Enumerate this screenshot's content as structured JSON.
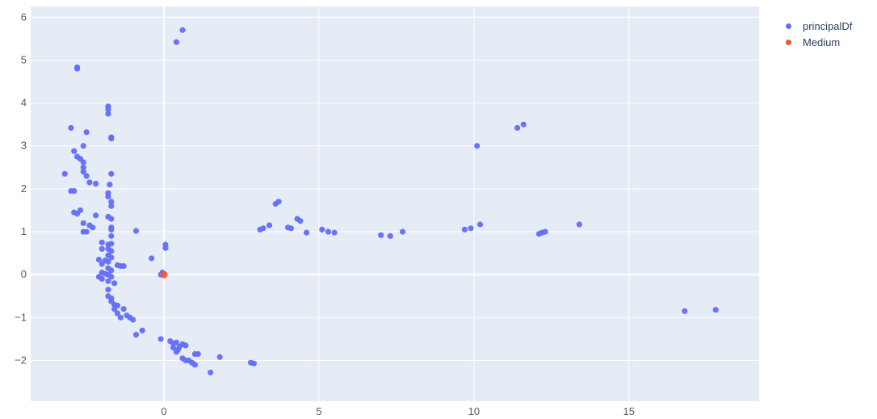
{
  "chart_data": {
    "type": "scatter",
    "title": "",
    "xlabel": "",
    "ylabel": "",
    "xlim": [
      -4.3,
      19.2
    ],
    "ylim": [
      -2.95,
      6.25
    ],
    "x_ticks": [
      0,
      5,
      10,
      15
    ],
    "x_tick_labels": [
      "0",
      "5",
      "10",
      "15"
    ],
    "y_ticks": [
      -2,
      -1,
      0,
      1,
      2,
      3,
      4,
      5,
      6
    ],
    "y_tick_labels": [
      "−2",
      "−1",
      "0",
      "1",
      "2",
      "3",
      "4",
      "5",
      "6"
    ],
    "grid": true,
    "plot_background": "#e5ecf6",
    "legend_position": "top-right, outside plot",
    "series": [
      {
        "name": "principalDf",
        "color": "#636efa",
        "points": [
          [
            0.4,
            5.42
          ],
          [
            0.6,
            5.7
          ],
          [
            -2.8,
            4.83
          ],
          [
            -2.8,
            4.8
          ],
          [
            -1.8,
            3.92
          ],
          [
            -1.8,
            3.85
          ],
          [
            -1.8,
            3.75
          ],
          [
            -3.0,
            3.42
          ],
          [
            -2.5,
            3.32
          ],
          [
            -1.7,
            3.2
          ],
          [
            -1.7,
            3.17
          ],
          [
            -2.6,
            3.0
          ],
          [
            -2.9,
            2.88
          ],
          [
            -2.8,
            2.75
          ],
          [
            -2.7,
            2.7
          ],
          [
            -2.6,
            2.62
          ],
          [
            -2.6,
            2.5
          ],
          [
            -2.6,
            2.4
          ],
          [
            -3.2,
            2.35
          ],
          [
            -2.5,
            2.3
          ],
          [
            -1.7,
            2.35
          ],
          [
            -2.4,
            2.15
          ],
          [
            -2.2,
            2.12
          ],
          [
            -1.75,
            2.1
          ],
          [
            -3.0,
            1.95
          ],
          [
            -2.9,
            1.95
          ],
          [
            -1.8,
            1.9
          ],
          [
            -1.8,
            1.82
          ],
          [
            -1.7,
            1.7
          ],
          [
            -1.7,
            1.6
          ],
          [
            -2.7,
            1.5
          ],
          [
            -2.9,
            1.45
          ],
          [
            -2.8,
            1.42
          ],
          [
            -2.2,
            1.38
          ],
          [
            -1.8,
            1.35
          ],
          [
            -1.7,
            1.3
          ],
          [
            -2.6,
            1.2
          ],
          [
            -2.4,
            1.15
          ],
          [
            -2.3,
            1.1
          ],
          [
            -1.7,
            1.1
          ],
          [
            -1.7,
            1.05
          ],
          [
            -2.6,
            1.0
          ],
          [
            -2.5,
            1.0
          ],
          [
            -0.9,
            1.02
          ],
          [
            -1.7,
            0.9
          ],
          [
            -2.0,
            0.75
          ],
          [
            -1.8,
            0.7
          ],
          [
            -1.7,
            0.72
          ],
          [
            -2.0,
            0.6
          ],
          [
            -1.8,
            0.6
          ],
          [
            -1.7,
            0.55
          ],
          [
            -1.8,
            0.45
          ],
          [
            -1.7,
            0.4
          ],
          [
            -2.1,
            0.35
          ],
          [
            -1.9,
            0.33
          ],
          [
            -1.8,
            0.3
          ],
          [
            -2.0,
            0.25
          ],
          [
            -1.5,
            0.22
          ],
          [
            -1.4,
            0.2
          ],
          [
            -1.3,
            0.2
          ],
          [
            -1.8,
            0.15
          ],
          [
            -1.7,
            0.1
          ],
          [
            -2.0,
            0.05
          ],
          [
            -1.9,
            0.02
          ],
          [
            -1.8,
            0.0
          ],
          [
            -1.7,
            -0.05
          ],
          [
            -2.1,
            -0.05
          ],
          [
            -2.0,
            -0.1
          ],
          [
            -1.8,
            -0.15
          ],
          [
            -1.6,
            -0.2
          ],
          [
            -1.8,
            -0.35
          ],
          [
            -1.8,
            -0.5
          ],
          [
            -1.7,
            -0.55
          ],
          [
            -1.7,
            -0.62
          ],
          [
            -1.6,
            -0.7
          ],
          [
            -1.5,
            -0.72
          ],
          [
            -1.6,
            -0.8
          ],
          [
            -1.3,
            -0.8
          ],
          [
            -1.5,
            -0.9
          ],
          [
            -1.2,
            -0.95
          ],
          [
            -1.4,
            -1.0
          ],
          [
            -1.1,
            -1.0
          ],
          [
            -1.0,
            -1.05
          ],
          [
            -0.7,
            -1.3
          ],
          [
            -0.9,
            -1.4
          ],
          [
            -0.4,
            0.38
          ],
          [
            0.05,
            0.7
          ],
          [
            0.05,
            0.62
          ],
          [
            -0.05,
            0.05
          ],
          [
            -0.1,
            0.0
          ],
          [
            -0.1,
            -1.5
          ],
          [
            0.2,
            -1.55
          ],
          [
            0.3,
            -1.6
          ],
          [
            0.4,
            -1.58
          ],
          [
            0.3,
            -1.7
          ],
          [
            0.45,
            -1.75
          ],
          [
            0.5,
            -1.68
          ],
          [
            0.6,
            -1.62
          ],
          [
            0.4,
            -1.8
          ],
          [
            0.7,
            -1.65
          ],
          [
            0.6,
            -1.95
          ],
          [
            0.7,
            -2.0
          ],
          [
            0.8,
            -2.0
          ],
          [
            0.9,
            -2.05
          ],
          [
            1.0,
            -1.85
          ],
          [
            1.1,
            -1.85
          ],
          [
            1.0,
            -2.1
          ],
          [
            1.5,
            -2.28
          ],
          [
            1.8,
            -1.92
          ],
          [
            2.8,
            -2.05
          ],
          [
            2.9,
            -2.07
          ],
          [
            3.1,
            1.05
          ],
          [
            3.2,
            1.08
          ],
          [
            3.4,
            1.15
          ],
          [
            3.6,
            1.65
          ],
          [
            3.7,
            1.7
          ],
          [
            4.0,
            1.1
          ],
          [
            4.1,
            1.08
          ],
          [
            4.3,
            1.3
          ],
          [
            4.4,
            1.25
          ],
          [
            4.6,
            0.98
          ],
          [
            5.1,
            1.05
          ],
          [
            5.3,
            1.0
          ],
          [
            5.5,
            0.98
          ],
          [
            7.0,
            0.92
          ],
          [
            7.3,
            0.9
          ],
          [
            7.7,
            1.0
          ],
          [
            9.7,
            1.05
          ],
          [
            9.9,
            1.08
          ],
          [
            10.2,
            1.17
          ],
          [
            10.1,
            3.0
          ],
          [
            11.4,
            3.42
          ],
          [
            11.6,
            3.5
          ],
          [
            12.1,
            0.95
          ],
          [
            12.2,
            0.98
          ],
          [
            12.3,
            1.0
          ],
          [
            13.4,
            1.17
          ],
          [
            16.8,
            -0.85
          ],
          [
            17.8,
            -0.82
          ]
        ]
      },
      {
        "name": "Medium",
        "color": "#ef553b",
        "points": [
          [
            0.0,
            0.0
          ]
        ]
      }
    ]
  }
}
